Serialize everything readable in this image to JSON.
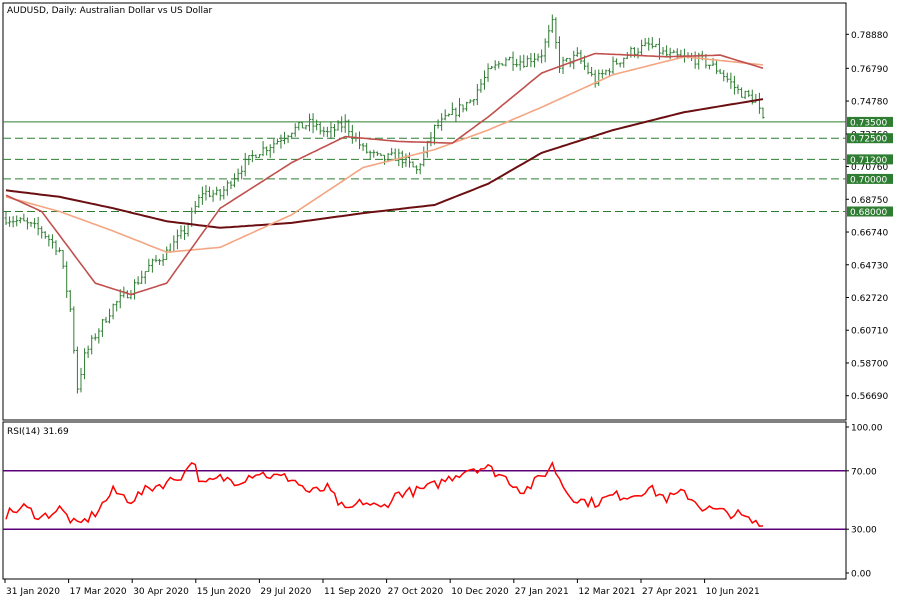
{
  "chart_data": {
    "type": "line",
    "title": "AUDUSD, Daily:  Australian Dollar vs US Dollar",
    "symbol": "AUDUSD",
    "grid": false,
    "colors": {
      "background": "#ffffff",
      "bars": "#2e7d32",
      "ma_fast": "#c0504d",
      "ma_mid": "#f4a582",
      "ma_slow": "#6b0f12",
      "levels": "#2e7d32",
      "rsi": "#ff0000",
      "rsi_levels": "#5b007a"
    },
    "x_tick_labels": [
      "31 Jan 2020",
      "17 Mar 2020",
      "30 Apr 2020",
      "15 Jun 2020",
      "29 Jul 2020",
      "11 Sep 2020",
      "27 Oct 2020",
      "10 Dec 2020",
      "27 Jan 2021",
      "12 Mar 2021",
      "27 Apr 2021",
      "10 Jun 2021"
    ],
    "price_panel": {
      "ylim": [
        0.5569,
        0.7988
      ],
      "y_tick_labels": [
        0.7888,
        0.7679,
        0.7478,
        0.7276,
        0.7076,
        0.6875,
        0.6674,
        0.6473,
        0.6272,
        0.6071,
        0.587,
        0.5669
      ],
      "levels": [
        0.735,
        0.725,
        0.712,
        0.7,
        0.68
      ],
      "price_path": [
        [
          0,
          0.676
        ],
        [
          5,
          0.673
        ],
        [
          10,
          0.668
        ],
        [
          15,
          0.656
        ],
        [
          18,
          0.62
        ],
        [
          20,
          0.572
        ],
        [
          22,
          0.591
        ],
        [
          25,
          0.604
        ],
        [
          30,
          0.622
        ],
        [
          35,
          0.632
        ],
        [
          40,
          0.646
        ],
        [
          45,
          0.655
        ],
        [
          50,
          0.668
        ],
        [
          55,
          0.692
        ],
        [
          60,
          0.69
        ],
        [
          65,
          0.705
        ],
        [
          70,
          0.716
        ],
        [
          75,
          0.722
        ],
        [
          80,
          0.73
        ],
        [
          85,
          0.734
        ],
        [
          90,
          0.728
        ],
        [
          95,
          0.734
        ],
        [
          100,
          0.718
        ],
        [
          105,
          0.712
        ],
        [
          110,
          0.714
        ],
        [
          115,
          0.705
        ],
        [
          120,
          0.731
        ],
        [
          125,
          0.74
        ],
        [
          130,
          0.748
        ],
        [
          135,
          0.765
        ],
        [
          140,
          0.774
        ],
        [
          145,
          0.772
        ],
        [
          150,
          0.777
        ],
        [
          153,
          0.795
        ],
        [
          155,
          0.77
        ],
        [
          160,
          0.775
        ],
        [
          165,
          0.76
        ],
        [
          170,
          0.77
        ],
        [
          175,
          0.778
        ],
        [
          180,
          0.782
        ],
        [
          185,
          0.776
        ],
        [
          190,
          0.774
        ],
        [
          195,
          0.773
        ],
        [
          200,
          0.766
        ],
        [
          205,
          0.754
        ],
        [
          210,
          0.748
        ],
        [
          212,
          0.735
        ]
      ],
      "moving_averages": [
        {
          "key": "ma_slow",
          "path": [
            [
              0,
              0.693
            ],
            [
              15,
              0.689
            ],
            [
              30,
              0.682
            ],
            [
              45,
              0.674
            ],
            [
              60,
              0.67
            ],
            [
              80,
              0.673
            ],
            [
              100,
              0.679
            ],
            [
              120,
              0.684
            ],
            [
              135,
              0.697
            ],
            [
              150,
              0.716
            ],
            [
              170,
              0.73
            ],
            [
              190,
              0.741
            ],
            [
              212,
              0.749
            ]
          ]
        },
        {
          "key": "ma_mid",
          "path": [
            [
              0,
              0.689
            ],
            [
              15,
              0.68
            ],
            [
              30,
              0.668
            ],
            [
              45,
              0.655
            ],
            [
              60,
              0.658
            ],
            [
              80,
              0.678
            ],
            [
              100,
              0.707
            ],
            [
              120,
              0.718
            ],
            [
              135,
              0.73
            ],
            [
              150,
              0.744
            ],
            [
              170,
              0.764
            ],
            [
              190,
              0.775
            ],
            [
              212,
              0.77
            ]
          ]
        },
        {
          "key": "ma_fast",
          "path": [
            [
              0,
              0.69
            ],
            [
              10,
              0.68
            ],
            [
              25,
              0.636
            ],
            [
              35,
              0.629
            ],
            [
              45,
              0.636
            ],
            [
              60,
              0.682
            ],
            [
              80,
              0.71
            ],
            [
              95,
              0.726
            ],
            [
              110,
              0.723
            ],
            [
              125,
              0.722
            ],
            [
              135,
              0.738
            ],
            [
              150,
              0.765
            ],
            [
              165,
              0.777
            ],
            [
              185,
              0.775
            ],
            [
              200,
              0.776
            ],
            [
              212,
              0.768
            ]
          ]
        }
      ]
    },
    "rsi_panel": {
      "label": "RSI(14) 31.69",
      "name": "RSI(14)",
      "last_value": 31.69,
      "ylim": [
        0,
        100
      ],
      "y_tick_labels": [
        "100.00",
        "70.00",
        "30.00",
        "0.00"
      ],
      "levels": [
        70,
        30
      ],
      "path": [
        [
          0,
          40
        ],
        [
          5,
          45
        ],
        [
          10,
          38
        ],
        [
          15,
          44
        ],
        [
          20,
          32
        ],
        [
          25,
          41
        ],
        [
          30,
          56
        ],
        [
          35,
          50
        ],
        [
          40,
          58
        ],
        [
          45,
          62
        ],
        [
          50,
          68
        ],
        [
          52,
          78
        ],
        [
          55,
          60
        ],
        [
          60,
          65
        ],
        [
          65,
          63
        ],
        [
          70,
          69
        ],
        [
          75,
          66
        ],
        [
          80,
          65
        ],
        [
          85,
          55
        ],
        [
          90,
          58
        ],
        [
          95,
          42
        ],
        [
          100,
          49
        ],
        [
          105,
          44
        ],
        [
          110,
          55
        ],
        [
          115,
          56
        ],
        [
          120,
          60
        ],
        [
          125,
          66
        ],
        [
          130,
          72
        ],
        [
          135,
          72
        ],
        [
          140,
          65
        ],
        [
          145,
          56
        ],
        [
          150,
          66
        ],
        [
          153,
          74
        ],
        [
          157,
          56
        ],
        [
          160,
          50
        ],
        [
          165,
          48
        ],
        [
          170,
          53
        ],
        [
          175,
          53
        ],
        [
          180,
          58
        ],
        [
          185,
          51
        ],
        [
          190,
          55
        ],
        [
          195,
          45
        ],
        [
          200,
          42
        ],
        [
          205,
          40
        ],
        [
          208,
          36
        ],
        [
          212,
          32
        ]
      ]
    }
  }
}
